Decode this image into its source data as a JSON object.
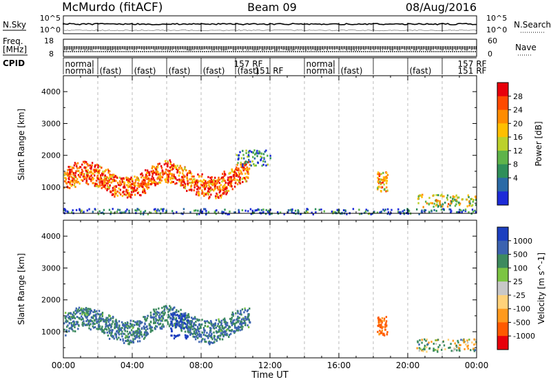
{
  "header": {
    "station": "McMurdo (fitACF)",
    "beam": "Beam 09",
    "date": "08/Aug/2016"
  },
  "top_panels": {
    "nsky_label": "N.Sky",
    "nsky_ticks": [
      "10^5",
      "10^0"
    ],
    "nsky_right_ticks": [
      "10^5",
      "10^0"
    ],
    "nsearch_label": "N.Search",
    "freq_label_1": "Freq.",
    "freq_label_2": "[MHz]",
    "freq_ticks": [
      "18",
      "8"
    ],
    "nave_label": "Nave",
    "nave_ticks": [
      "60",
      "0"
    ],
    "cpid_label": "CPID",
    "cpid_mode_labels": [
      {
        "text": "normal",
        "row": 0,
        "hour": 0.1
      },
      {
        "text": "normal",
        "row": 1,
        "hour": 0.1
      },
      {
        "text": "normal",
        "row": 0,
        "hour": 14.1
      },
      {
        "text": "normal",
        "row": 1,
        "hour": 14.1
      },
      {
        "text": "(fast)",
        "row": 1,
        "hour": 2.1
      },
      {
        "text": "(fast)",
        "row": 1,
        "hour": 4.1
      },
      {
        "text": "(fast)",
        "row": 1,
        "hour": 6.1
      },
      {
        "text": "(fast)",
        "row": 1,
        "hour": 8.1
      },
      {
        "text": "(fast)",
        "row": 1,
        "hour": 10.1
      },
      {
        "text": "(fast)",
        "row": 1,
        "hour": 16.1
      },
      {
        "text": "(fast)",
        "row": 1,
        "hour": 20.1
      },
      {
        "text": "157 RF",
        "row": 0,
        "hour": 9.9
      },
      {
        "text": "151 RF",
        "row": 1,
        "hour": 11.1
      },
      {
        "text": "157 RF",
        "row": 0,
        "hour": 22.9
      },
      {
        "text": "151 RF",
        "row": 1,
        "hour": 22.9
      }
    ]
  },
  "x_axis": {
    "title": "Time UT",
    "tick_labels": [
      "00:00",
      "04:00",
      "08:00",
      "12:00",
      "16:00",
      "20:00",
      "00:00"
    ]
  },
  "power_colorbar": {
    "title": "Power [dB]",
    "ticks": [
      "28",
      "24",
      "20",
      "16",
      "12",
      "8",
      "4"
    ],
    "colors": [
      "#e8000b",
      "#ff4a00",
      "#ff8c00",
      "#ffbf00",
      "#bcd12b",
      "#5fb44a",
      "#2f8f5a",
      "#2a6aa6",
      "#1d2bd8"
    ]
  },
  "velocity_colorbar": {
    "title": "Velocity [m s^-1]",
    "ticks": [
      "1000",
      "500",
      "100",
      "25",
      "-25",
      "-100",
      "-500",
      "-1000"
    ],
    "colors": [
      "#1c3fbf",
      "#3c63b0",
      "#3d8a5e",
      "#7cc443",
      "#c8c8c8",
      "#ffd27a",
      "#ff9a1e",
      "#ff5a00",
      "#e8000b"
    ]
  },
  "chart_data": [
    {
      "type": "heatmap",
      "title": "Power",
      "ylabel": "Slant Range [km]",
      "xlabel": "",
      "xlim_hours": [
        0,
        24
      ],
      "ylim_km": [
        180,
        4500
      ],
      "yticks": [
        1000,
        2000,
        3000,
        4000
      ],
      "ytick_labels": [
        "1000",
        "2000",
        "3000",
        "4000"
      ],
      "colorbar": "Power [dB]",
      "scatter_regions": [
        {
          "hours": [
            0,
            10.8
          ],
          "range_km": [
            600,
            2000
          ],
          "power_db": 24
        },
        {
          "hours": [
            10.0,
            12.0
          ],
          "range_km": [
            1700,
            2200
          ],
          "power_db": 8
        },
        {
          "hours": [
            18.2,
            18.8
          ],
          "range_km": [
            900,
            1500
          ],
          "power_db": 20
        },
        {
          "hours": [
            20.5,
            24
          ],
          "range_km": [
            400,
            800
          ],
          "power_db": 16
        },
        {
          "hours": [
            0,
            24
          ],
          "range_km": [
            180,
            350
          ],
          "power_db": 6
        }
      ]
    },
    {
      "type": "heatmap",
      "title": "Velocity",
      "ylabel": "Slant Range [km]",
      "xlabel": "Time UT",
      "xlim_hours": [
        0,
        24
      ],
      "ylim_km": [
        180,
        4500
      ],
      "yticks": [
        1000,
        2000,
        3000,
        4000
      ],
      "ytick_labels": [
        "1000",
        "2000",
        "3000",
        "4000"
      ],
      "colorbar": "Velocity [m s^-1]",
      "scatter_regions": [
        {
          "hours": [
            0,
            10.8
          ],
          "range_km": [
            600,
            2000
          ],
          "velocity_ms": 300
        },
        {
          "hours": [
            6.2,
            7.2
          ],
          "range_km": [
            800,
            1600
          ],
          "velocity_ms": 1000
        },
        {
          "hours": [
            18.2,
            18.8
          ],
          "range_km": [
            900,
            1500
          ],
          "velocity_ms": -400
        },
        {
          "hours": [
            20.5,
            24
          ],
          "range_km": [
            400,
            800
          ],
          "velocity_ms": 80
        }
      ]
    }
  ]
}
